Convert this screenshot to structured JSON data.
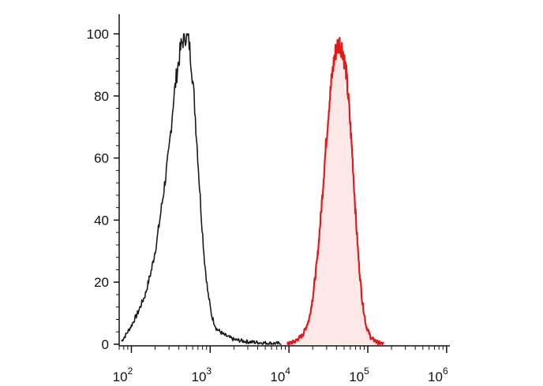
{
  "chart_data": {
    "type": "area",
    "title": "",
    "xlabel": "",
    "ylabel": "",
    "x_scale": "log",
    "xlim": [
      70,
      1100000
    ],
    "ylim": [
      0,
      100
    ],
    "x_ticks": [
      {
        "base": "10",
        "exp": "2",
        "value": 100
      },
      {
        "base": "10",
        "exp": "3",
        "value": 1000
      },
      {
        "base": "10",
        "exp": "4",
        "value": 10000
      },
      {
        "base": "10",
        "exp": "5",
        "value": 100000
      },
      {
        "base": "10",
        "exp": "6",
        "value": 1000000
      }
    ],
    "y_ticks": [
      "0",
      "20",
      "40",
      "60",
      "80",
      "100"
    ],
    "y_tick_values": [
      0,
      20,
      40,
      60,
      80,
      100
    ],
    "grid": false,
    "legend": "none",
    "series": [
      {
        "color": "#1a1a1a",
        "fill": "none",
        "points": [
          [
            75,
            1
          ],
          [
            85,
            3
          ],
          [
            100,
            6
          ],
          [
            120,
            10
          ],
          [
            150,
            16
          ],
          [
            180,
            24
          ],
          [
            210,
            33
          ],
          [
            250,
            47
          ],
          [
            300,
            62
          ],
          [
            340,
            78
          ],
          [
            380,
            88
          ],
          [
            420,
            95
          ],
          [
            460,
            99
          ],
          [
            500,
            100
          ],
          [
            540,
            97
          ],
          [
            580,
            90
          ],
          [
            630,
            78
          ],
          [
            690,
            62
          ],
          [
            760,
            44
          ],
          [
            840,
            28
          ],
          [
            930,
            17
          ],
          [
            1050,
            9
          ],
          [
            1200,
            5
          ],
          [
            1500,
            3
          ],
          [
            2000,
            1.5
          ],
          [
            3000,
            0.8
          ],
          [
            5000,
            0.4
          ],
          [
            8000,
            0.2
          ]
        ]
      },
      {
        "color": "#e41a1a",
        "fill": "#fde8e8",
        "points": [
          [
            9500,
            0
          ],
          [
            12000,
            1
          ],
          [
            15000,
            3
          ],
          [
            18000,
            8
          ],
          [
            20000,
            15
          ],
          [
            23000,
            28
          ],
          [
            26000,
            45
          ],
          [
            29000,
            62
          ],
          [
            32000,
            76
          ],
          [
            35000,
            86
          ],
          [
            38000,
            93
          ],
          [
            41000,
            96
          ],
          [
            44000,
            97
          ],
          [
            48000,
            95
          ],
          [
            53000,
            88
          ],
          [
            58000,
            76
          ],
          [
            64000,
            60
          ],
          [
            70000,
            42
          ],
          [
            77000,
            26
          ],
          [
            85000,
            14
          ],
          [
            95000,
            6
          ],
          [
            110000,
            2
          ],
          [
            135000,
            0.5
          ],
          [
            160000,
            0
          ]
        ]
      }
    ]
  }
}
